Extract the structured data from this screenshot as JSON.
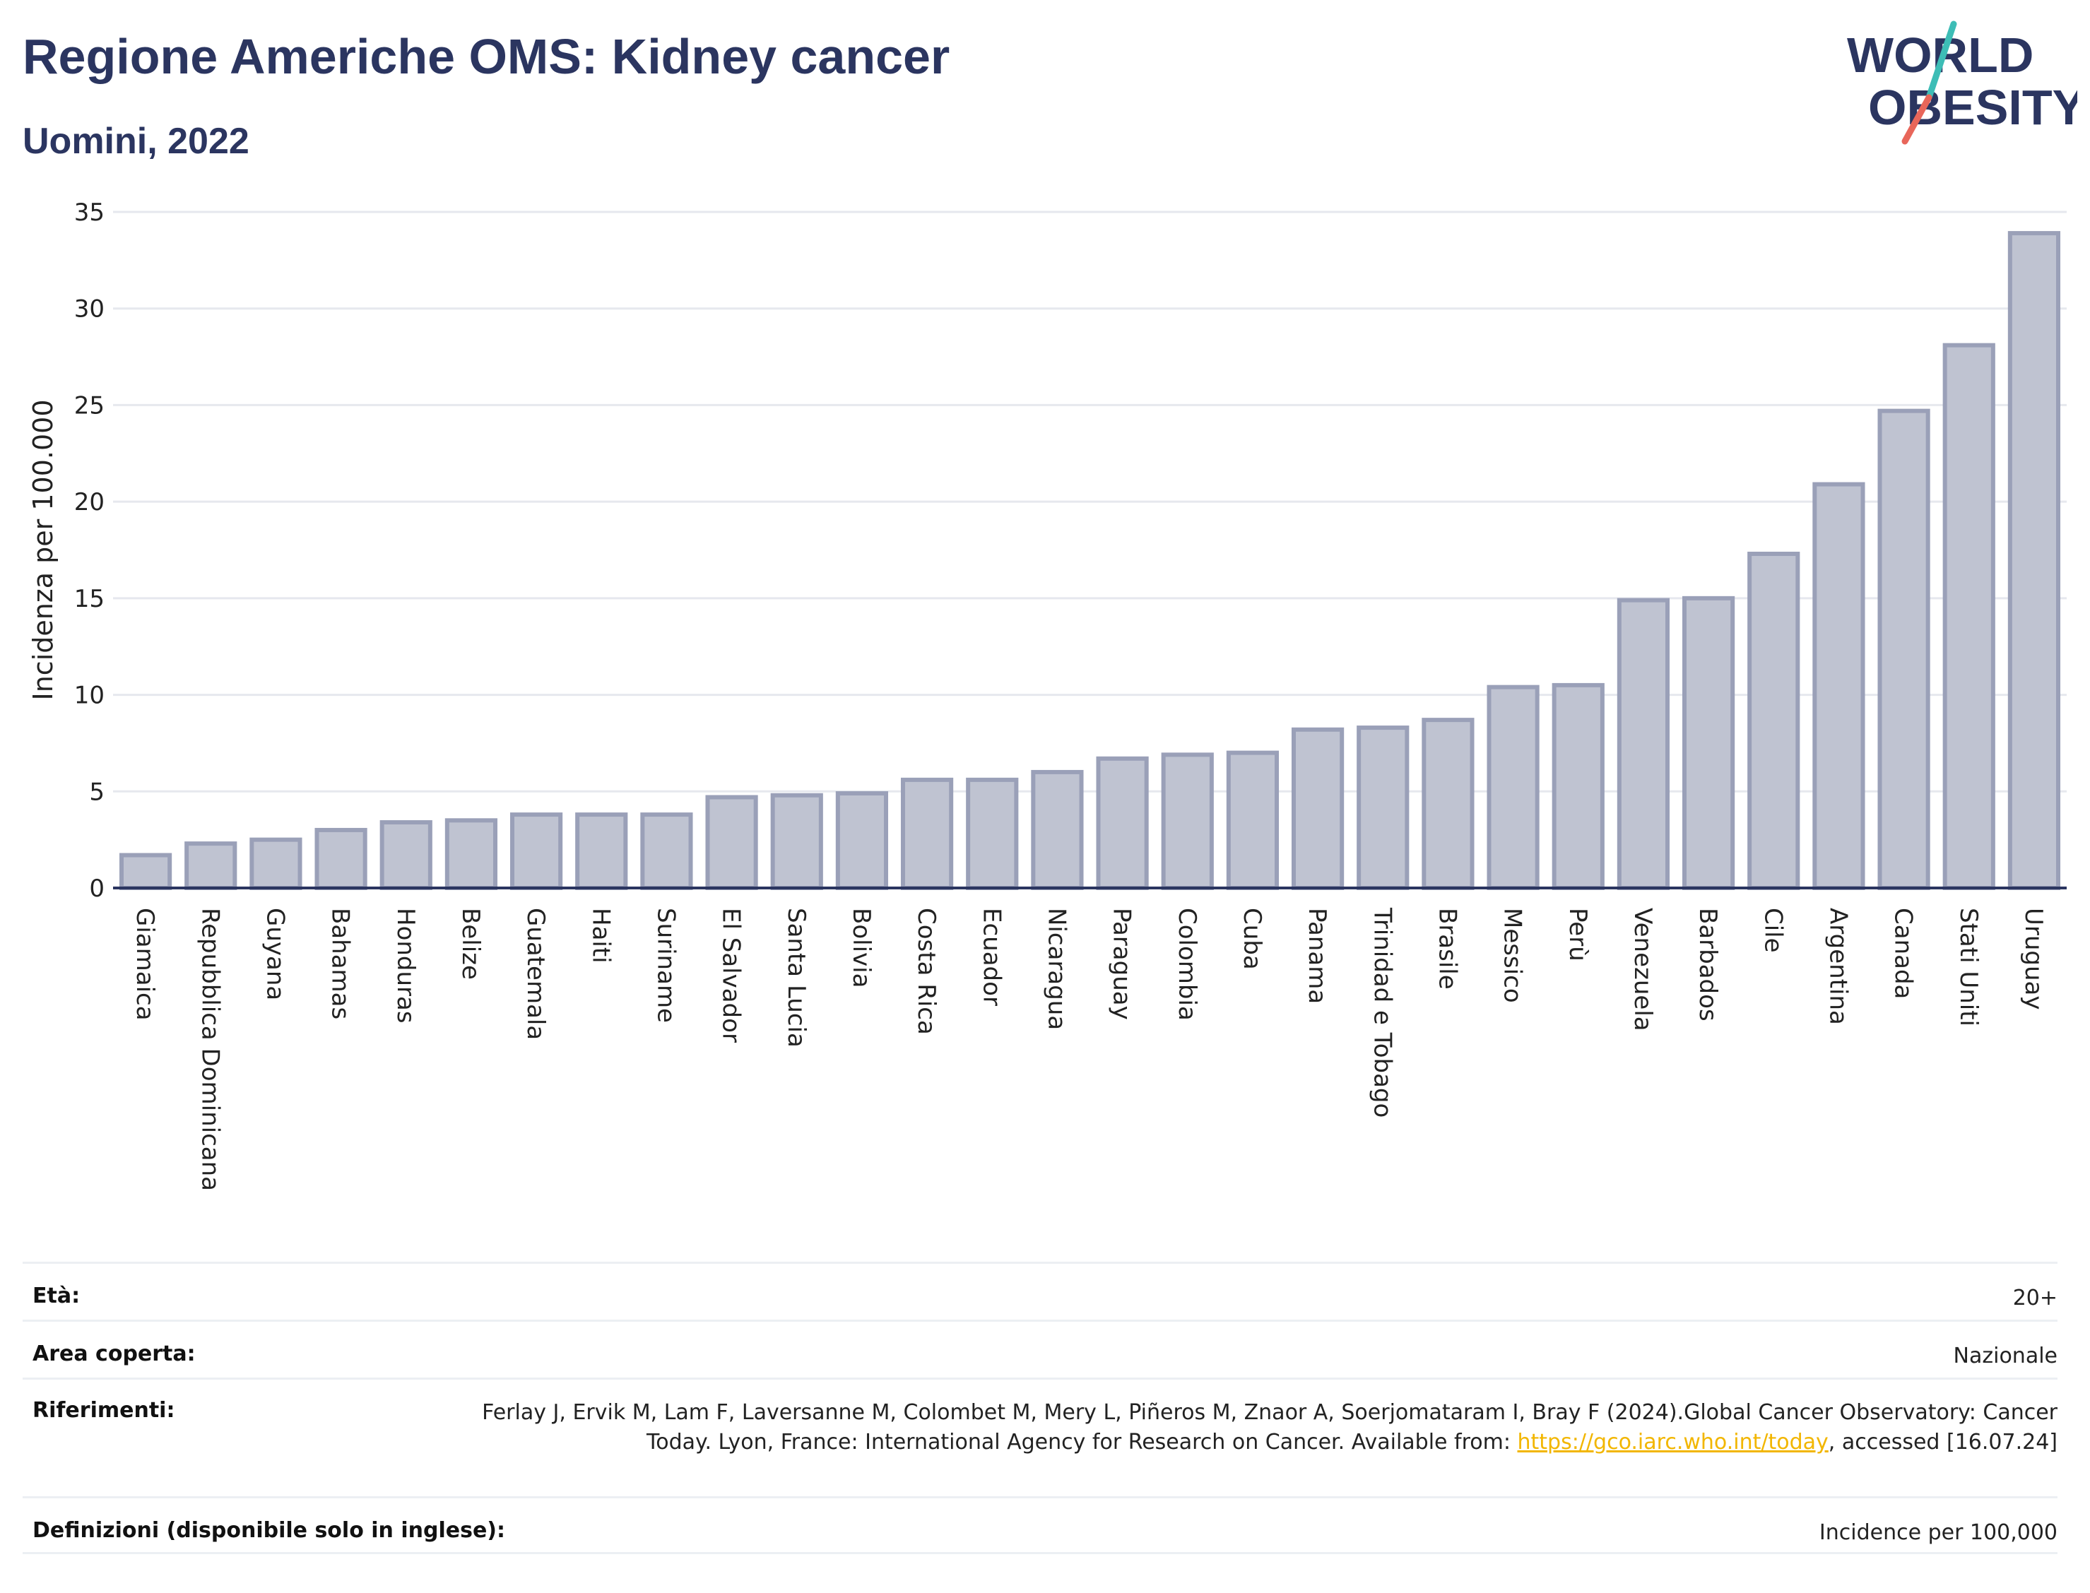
{
  "header": {
    "title": "Regione Americhe OMS: Kidney cancer",
    "subtitle": "Uomini, 2022"
  },
  "logo": {
    "line1": "WORLD",
    "line2": "OBESITY",
    "colors": {
      "text": "#2b3560",
      "slash_top": "#3dbdb6",
      "slash_bottom": "#e8665a"
    }
  },
  "chart_data": {
    "type": "bar",
    "title": "",
    "xlabel": "",
    "ylabel": "Incidenza per 100.000",
    "ylim": [
      0,
      35
    ],
    "yticks": [
      0,
      5,
      10,
      15,
      20,
      25,
      30,
      35
    ],
    "grid": true,
    "bar_fill": "#bfc3d1",
    "bar_stroke": "#9aa0b8",
    "categories": [
      "Giamaica",
      "Repubblica Dominicana",
      "Guyana",
      "Bahamas",
      "Honduras",
      "Belize",
      "Guatemala",
      "Haiti",
      "Suriname",
      "El Salvador",
      "Santa Lucia",
      "Bolivia",
      "Costa Rica",
      "Ecuador",
      "Nicaragua",
      "Paraguay",
      "Colombia",
      "Cuba",
      "Panama",
      "Trinidad e Tobago",
      "Brasile",
      "Messico",
      "Perù",
      "Venezuela",
      "Barbados",
      "Cile",
      "Argentina",
      "Canada",
      "Stati Uniti",
      "Uruguay"
    ],
    "values": [
      1.7,
      2.3,
      2.5,
      3.0,
      3.4,
      3.5,
      3.8,
      3.8,
      3.8,
      4.7,
      4.8,
      4.9,
      5.6,
      5.6,
      6.0,
      6.7,
      6.9,
      7.0,
      8.2,
      8.3,
      8.7,
      10.4,
      10.5,
      14.9,
      15.0,
      17.3,
      20.9,
      24.7,
      28.1,
      33.9
    ]
  },
  "info": {
    "rows": [
      {
        "label": "Età:",
        "value": "20+"
      },
      {
        "label": "Area coperta:",
        "value": "Nazionale"
      },
      {
        "label": "Riferimenti:",
        "value_part1": "Ferlay J, Ervik M, Lam F, Laversanne M, Colombet M, Mery L, Piñeros M, Znaor A, Soerjomataram I, Bray F (2024).Global Cancer Observatory: Cancer Today. Lyon, France: International Agency for Research on Cancer. Available from: ",
        "link": "https://gco.iarc.who.int/today",
        "value_part2": ", accessed [16.07.24]"
      },
      {
        "label": "Definizioni (disponibile solo in inglese):",
        "value": "Incidence per 100,000"
      }
    ]
  }
}
